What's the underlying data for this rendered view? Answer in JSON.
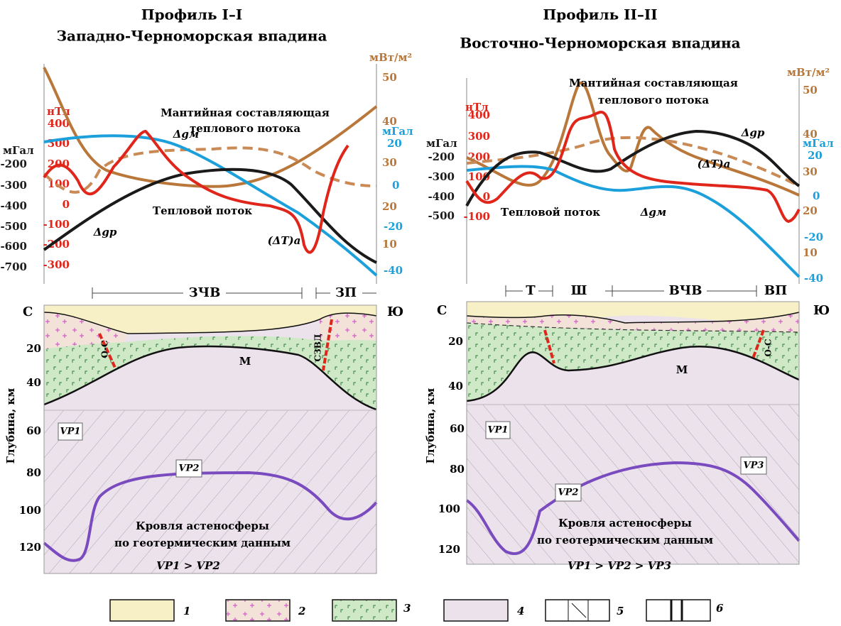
{
  "panels": [
    {
      "title": "Профиль I–I",
      "subtitle": "Западно-Черноморская впадина",
      "left_axis": {
        "unit": "мГал",
        "ticks": [
          "-200",
          "-300",
          "-400",
          "-500",
          "-600",
          "-700"
        ]
      },
      "magnetic_axis": {
        "unit": "нТл",
        "ticks": [
          "400",
          "300",
          "200",
          "100",
          "0",
          "-100",
          "-200",
          "-300"
        ]
      },
      "heat_axis": {
        "unit": "мВт/м²",
        "ticks": [
          "50",
          "40",
          "30",
          "20",
          "10"
        ]
      },
      "gravity_axis": {
        "unit": "мГал",
        "ticks": [
          "20",
          "0",
          "-20",
          "-40"
        ]
      },
      "annotations": [
        "Мантийная составляющая",
        "теплового потока",
        "Δgм",
        "Тепловой поток",
        "Δgр",
        "(ΔT)а"
      ],
      "zones": [
        "ЗЧВ",
        "ЗП"
      ],
      "ends": [
        "С",
        "Ю"
      ],
      "depth_label": "Глубина, км",
      "depth_ticks": [
        "20",
        "40",
        "60",
        "80",
        "100",
        "120"
      ],
      "moho": "М",
      "faults": [
        "О-С",
        "СЗВД"
      ],
      "velocity": [
        "VP1",
        "VP2"
      ],
      "asthenosphere": [
        "Кровля астеносферы",
        "по геотермическим данным"
      ],
      "relation": "VP1 > VP2"
    },
    {
      "title": "Профиль II–II",
      "subtitle": "Восточно-Черноморская впадина",
      "left_axis": {
        "unit": "мГал",
        "ticks": [
          "-200",
          "-300",
          "-400",
          "-500"
        ]
      },
      "magnetic_axis": {
        "unit": "нТл",
        "ticks": [
          "400",
          "300",
          "200",
          "100",
          "0",
          "-100"
        ]
      },
      "heat_axis": {
        "unit": "мВт/м²",
        "ticks": [
          "50",
          "40",
          "30",
          "20",
          "10"
        ]
      },
      "gravity_axis": {
        "unit": "мГал",
        "ticks": [
          "20",
          "0",
          "-20",
          "-40"
        ]
      },
      "annotations": [
        "Мантийная составляющая",
        "теплового потока",
        "Δgр",
        "(ΔT)а",
        "Тепловой поток",
        "Δgм"
      ],
      "zones": [
        "Т",
        "Ш",
        "ВЧВ",
        "ВП"
      ],
      "ends": [
        "С",
        "Ю"
      ],
      "depth_label": "Глубина, км",
      "depth_ticks": [
        "20",
        "40",
        "60",
        "80",
        "100",
        "120"
      ],
      "moho": "М",
      "faults": [
        "О-С"
      ],
      "velocity": [
        "VP1",
        "VP2",
        "VP3"
      ],
      "asthenosphere": [
        "Кровля астеносферы",
        "по геотермическим данным"
      ],
      "relation": "VP1 > VP2 > VP3"
    }
  ],
  "legend": [
    "1",
    "2",
    "3",
    "4",
    "5",
    "6"
  ]
}
